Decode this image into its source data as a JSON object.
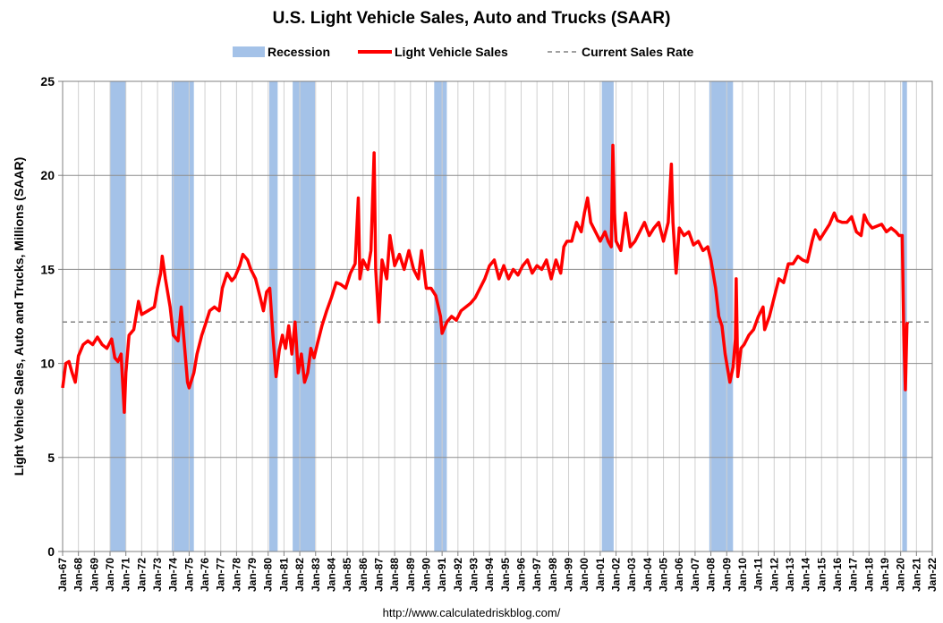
{
  "chart_data": {
    "type": "line",
    "title": "U.S. Light Vehicle Sales, Auto and Trucks (SAAR)",
    "y_label": "Light Vehicle Sales, Auto and Trucks, Millions (SAAR)",
    "source": "http://www.calculatedriskblog.com/",
    "xlim": [
      1967,
      2022
    ],
    "xticks": [
      {
        "value": 1967,
        "label": "Jan-67"
      },
      {
        "value": 1968,
        "label": "Jan-68"
      },
      {
        "value": 1969,
        "label": "Jan-69"
      },
      {
        "value": 1970,
        "label": "Jan-70"
      },
      {
        "value": 1971,
        "label": "Jan-71"
      },
      {
        "value": 1972,
        "label": "Jan-72"
      },
      {
        "value": 1973,
        "label": "Jan-73"
      },
      {
        "value": 1974,
        "label": "Jan-74"
      },
      {
        "value": 1975,
        "label": "Jan-75"
      },
      {
        "value": 1976,
        "label": "Jan-76"
      },
      {
        "value": 1977,
        "label": "Jan-77"
      },
      {
        "value": 1978,
        "label": "Jan-78"
      },
      {
        "value": 1979,
        "label": "Jan-79"
      },
      {
        "value": 1980,
        "label": "Jan-80"
      },
      {
        "value": 1981,
        "label": "Jan-81"
      },
      {
        "value": 1982,
        "label": "Jan-82"
      },
      {
        "value": 1983,
        "label": "Jan-83"
      },
      {
        "value": 1984,
        "label": "Jan-84"
      },
      {
        "value": 1985,
        "label": "Jan-85"
      },
      {
        "value": 1986,
        "label": "Jan-86"
      },
      {
        "value": 1987,
        "label": "Jan-87"
      },
      {
        "value": 1988,
        "label": "Jan-88"
      },
      {
        "value": 1989,
        "label": "Jan-89"
      },
      {
        "value": 1990,
        "label": "Jan-90"
      },
      {
        "value": 1991,
        "label": "Jan-91"
      },
      {
        "value": 1992,
        "label": "Jan-92"
      },
      {
        "value": 1993,
        "label": "Jan-93"
      },
      {
        "value": 1994,
        "label": "Jan-94"
      },
      {
        "value": 1995,
        "label": "Jan-95"
      },
      {
        "value": 1996,
        "label": "Jan-96"
      },
      {
        "value": 1997,
        "label": "Jan-97"
      },
      {
        "value": 1998,
        "label": "Jan-98"
      },
      {
        "value": 1999,
        "label": "Jan-99"
      },
      {
        "value": 2000,
        "label": "Jan-00"
      },
      {
        "value": 2001,
        "label": "Jan-01"
      },
      {
        "value": 2002,
        "label": "Jan-02"
      },
      {
        "value": 2003,
        "label": "Jan-03"
      },
      {
        "value": 2004,
        "label": "Jan-04"
      },
      {
        "value": 2005,
        "label": "Jan-05"
      },
      {
        "value": 2006,
        "label": "Jan-06"
      },
      {
        "value": 2007,
        "label": "Jan-07"
      },
      {
        "value": 2008,
        "label": "Jan-08"
      },
      {
        "value": 2009,
        "label": "Jan-09"
      },
      {
        "value": 2010,
        "label": "Jan-10"
      },
      {
        "value": 2011,
        "label": "Jan-11"
      },
      {
        "value": 2012,
        "label": "Jan-12"
      },
      {
        "value": 2013,
        "label": "Jan-13"
      },
      {
        "value": 2014,
        "label": "Jan-14"
      },
      {
        "value": 2015,
        "label": "Jan-15"
      },
      {
        "value": 2016,
        "label": "Jan-16"
      },
      {
        "value": 2017,
        "label": "Jan-17"
      },
      {
        "value": 2018,
        "label": "Jan-18"
      },
      {
        "value": 2019,
        "label": "Jan-19"
      },
      {
        "value": 2020,
        "label": "Jan-20"
      },
      {
        "value": 2021,
        "label": "Jan-21"
      },
      {
        "value": 2022,
        "label": "Jan-22"
      }
    ],
    "ylim": [
      0,
      25
    ],
    "yticks": [
      0,
      5,
      10,
      15,
      20,
      25
    ],
    "grid": true,
    "recession": {
      "name": "Recession",
      "color": "#a4c2e8",
      "periods": [
        [
          1970.0,
          1971.0
        ],
        [
          1973.9,
          1975.3
        ],
        [
          1980.07,
          1980.6
        ],
        [
          1981.55,
          1982.96
        ],
        [
          1990.5,
          1991.3
        ],
        [
          2001.1,
          2001.85
        ],
        [
          2007.9,
          2009.4
        ],
        [
          2020.1,
          2020.4
        ]
      ]
    },
    "reference": {
      "name": "Current Sales Rate",
      "value": 12.2,
      "color": "#808080"
    },
    "x": [
      1967.0,
      1967.2,
      1967.4,
      1967.6,
      1967.8,
      1968.0,
      1968.3,
      1968.6,
      1968.9,
      1969.2,
      1969.5,
      1969.8,
      1970.1,
      1970.3,
      1970.5,
      1970.7,
      1970.9,
      1971.0,
      1971.2,
      1971.5,
      1971.8,
      1972.0,
      1972.4,
      1972.8,
      1973.0,
      1973.2,
      1973.3,
      1973.5,
      1973.8,
      1974.0,
      1974.3,
      1974.5,
      1974.7,
      1974.9,
      1975.0,
      1975.3,
      1975.5,
      1975.8,
      1976.0,
      1976.3,
      1976.6,
      1976.9,
      1977.1,
      1977.4,
      1977.7,
      1977.9,
      1978.2,
      1978.4,
      1978.7,
      1978.9,
      1979.2,
      1979.5,
      1979.7,
      1979.9,
      1980.1,
      1980.3,
      1980.5,
      1980.7,
      1980.9,
      1981.1,
      1981.3,
      1981.5,
      1981.7,
      1981.9,
      1982.1,
      1982.3,
      1982.5,
      1982.7,
      1982.9,
      1983.1,
      1983.4,
      1983.7,
      1984.0,
      1984.3,
      1984.6,
      1984.9,
      1985.2,
      1985.5,
      1985.7,
      1985.8,
      1986.0,
      1986.3,
      1986.5,
      1986.7,
      1986.8,
      1987.0,
      1987.2,
      1987.5,
      1987.7,
      1988.0,
      1988.3,
      1988.6,
      1988.9,
      1989.2,
      1989.5,
      1989.7,
      1990.0,
      1990.3,
      1990.6,
      1990.9,
      1991.0,
      1991.3,
      1991.6,
      1991.9,
      1992.2,
      1992.5,
      1992.8,
      1993.1,
      1993.4,
      1993.7,
      1994.0,
      1994.3,
      1994.6,
      1994.9,
      1995.2,
      1995.5,
      1995.8,
      1996.1,
      1996.4,
      1996.7,
      1997.0,
      1997.3,
      1997.6,
      1997.9,
      1998.2,
      1998.5,
      1998.7,
      1998.9,
      1999.2,
      1999.5,
      1999.8,
      2000.0,
      2000.2,
      2000.4,
      2000.7,
      2001.0,
      2001.3,
      2001.5,
      2001.7,
      2001.8,
      2001.9,
      2002.0,
      2002.3,
      2002.6,
      2002.9,
      2003.2,
      2003.5,
      2003.8,
      2004.1,
      2004.4,
      2004.7,
      2005.0,
      2005.3,
      2005.5,
      2005.6,
      2005.8,
      2006.0,
      2006.3,
      2006.6,
      2006.9,
      2007.2,
      2007.5,
      2007.8,
      2008.0,
      2008.3,
      2008.5,
      2008.7,
      2008.9,
      2009.1,
      2009.2,
      2009.4,
      2009.55,
      2009.6,
      2009.7,
      2009.9,
      2010.1,
      2010.4,
      2010.7,
      2011.0,
      2011.3,
      2011.4,
      2011.7,
      2012.0,
      2012.3,
      2012.6,
      2012.9,
      2013.2,
      2013.5,
      2013.8,
      2014.1,
      2014.4,
      2014.6,
      2014.9,
      2015.2,
      2015.5,
      2015.8,
      2016.0,
      2016.3,
      2016.6,
      2016.9,
      2017.2,
      2017.5,
      2017.7,
      2017.9,
      2018.2,
      2018.5,
      2018.8,
      2019.1,
      2019.4,
      2019.7,
      2019.9,
      2020.1,
      2020.2,
      2020.3,
      2020.4,
      2020.45
    ],
    "series": [
      {
        "name": "Light Vehicle Sales",
        "color": "#ff0000",
        "values": [
          8.7,
          10.0,
          10.1,
          9.5,
          9.0,
          10.4,
          11.0,
          11.2,
          11.0,
          11.4,
          11.0,
          10.8,
          11.3,
          10.3,
          10.1,
          10.5,
          7.4,
          9.5,
          11.5,
          11.8,
          13.3,
          12.6,
          12.8,
          13.0,
          14.0,
          14.8,
          15.7,
          14.5,
          13.0,
          11.5,
          11.2,
          13.0,
          11.0,
          9.0,
          8.7,
          9.5,
          10.5,
          11.5,
          12.0,
          12.8,
          13.0,
          12.8,
          14.0,
          14.8,
          14.4,
          14.6,
          15.2,
          15.8,
          15.5,
          15.0,
          14.5,
          13.5,
          12.8,
          13.8,
          14.0,
          11.5,
          9.3,
          10.7,
          11.5,
          10.8,
          12.0,
          10.5,
          12.2,
          9.5,
          10.5,
          9.0,
          9.5,
          10.8,
          10.3,
          11.0,
          12.0,
          12.8,
          13.5,
          14.3,
          14.2,
          14.0,
          14.8,
          15.3,
          18.8,
          14.5,
          15.5,
          15.0,
          16.0,
          21.2,
          15.0,
          12.2,
          15.5,
          14.5,
          16.8,
          15.2,
          15.8,
          15.0,
          16.0,
          15.0,
          14.5,
          16.0,
          14.0,
          14.0,
          13.6,
          12.5,
          11.6,
          12.2,
          12.5,
          12.3,
          12.8,
          13.0,
          13.2,
          13.5,
          14.0,
          14.5,
          15.2,
          15.5,
          14.5,
          15.2,
          14.5,
          15.0,
          14.7,
          15.2,
          15.5,
          14.8,
          15.2,
          15.0,
          15.5,
          14.5,
          15.5,
          14.8,
          16.2,
          16.5,
          16.5,
          17.5,
          17.0,
          18.0,
          18.8,
          17.5,
          17.0,
          16.5,
          17.0,
          16.5,
          16.2,
          21.6,
          18.0,
          16.5,
          16.0,
          18.0,
          16.2,
          16.5,
          17.0,
          17.5,
          16.8,
          17.2,
          17.5,
          16.5,
          17.5,
          20.6,
          17.5,
          14.8,
          17.2,
          16.8,
          17.0,
          16.3,
          16.5,
          16.0,
          16.2,
          15.5,
          14.0,
          12.5,
          12.0,
          10.5,
          9.5,
          9.0,
          9.8,
          11.3,
          14.5,
          9.3,
          10.8,
          11.0,
          11.5,
          11.8,
          12.5,
          13.0,
          11.8,
          12.5,
          13.5,
          14.5,
          14.3,
          15.3,
          15.3,
          15.7,
          15.5,
          15.4,
          16.5,
          17.1,
          16.6,
          17.0,
          17.4,
          18.0,
          17.6,
          17.5,
          17.5,
          17.8,
          17.0,
          16.8,
          17.9,
          17.5,
          17.2,
          17.3,
          17.4,
          17.0,
          17.2,
          17.0,
          16.8,
          16.8,
          11.5,
          8.6,
          12.1,
          12.2
        ]
      }
    ]
  }
}
